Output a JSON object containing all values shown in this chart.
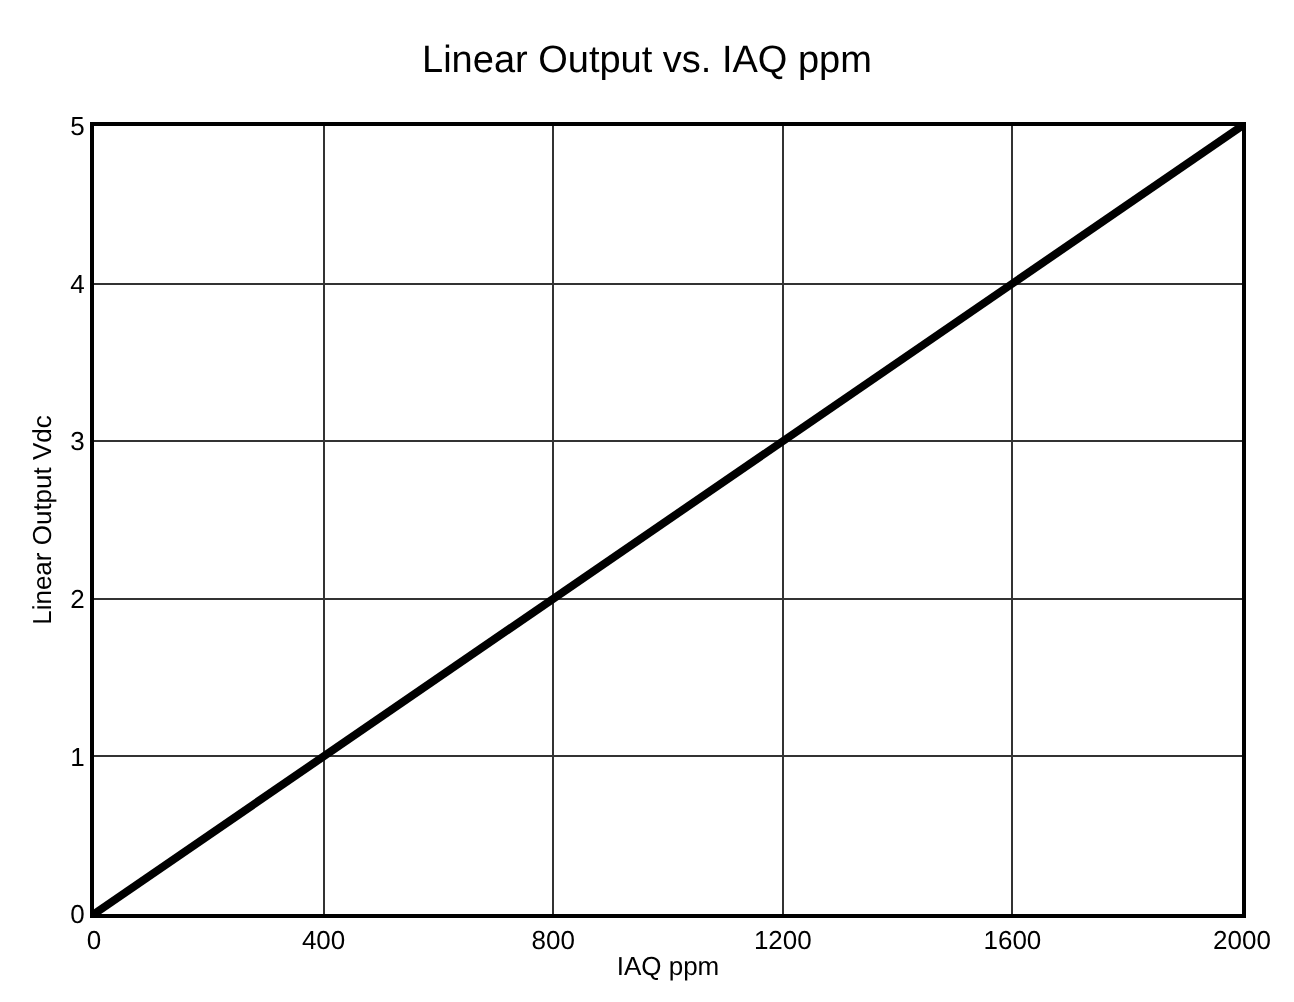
{
  "chart_data": {
    "type": "line",
    "title": "Linear Output vs. IAQ ppm",
    "xlabel": "IAQ ppm",
    "ylabel": "Linear Output Vdc",
    "x": [
      0,
      2000
    ],
    "series": [
      {
        "color": "#000000",
        "values": [
          0,
          5
        ]
      }
    ],
    "xlim": [
      0,
      2000
    ],
    "xticks": [
      0,
      400,
      800,
      1200,
      1600,
      2000
    ],
    "ylim": [
      0,
      5
    ],
    "yticks": [
      0,
      1,
      2,
      3,
      4,
      5
    ],
    "grid": true,
    "legend": false,
    "marker": "none",
    "line_style": "solid"
  }
}
